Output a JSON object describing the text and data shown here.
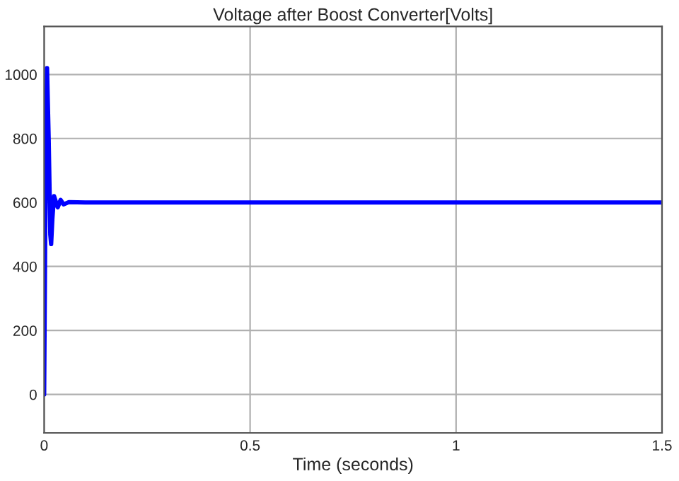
{
  "chart_data": {
    "type": "line",
    "title": "Voltage after Boost Converter[Volts]",
    "xlabel": "Time (seconds)",
    "series": [
      {
        "color": "#0000ff",
        "x": [
          0,
          0.003,
          0.007,
          0.011,
          0.015,
          0.017,
          0.02,
          0.024,
          0.029,
          0.033,
          0.04,
          0.047,
          0.06,
          0.1,
          1.5
        ],
        "values": [
          0,
          600,
          1020,
          800,
          500,
          470,
          550,
          620,
          600,
          585,
          608,
          594,
          601,
          600,
          600
        ]
      }
    ],
    "xlim": [
      0,
      1.5
    ],
    "xticks": [
      0,
      0.5,
      1,
      1.5
    ],
    "ylim": [
      -120,
      1150
    ],
    "yticks": [
      0,
      200,
      400,
      600,
      800,
      1000
    ],
    "grid": true,
    "line_style": "solid",
    "marker": "none"
  }
}
